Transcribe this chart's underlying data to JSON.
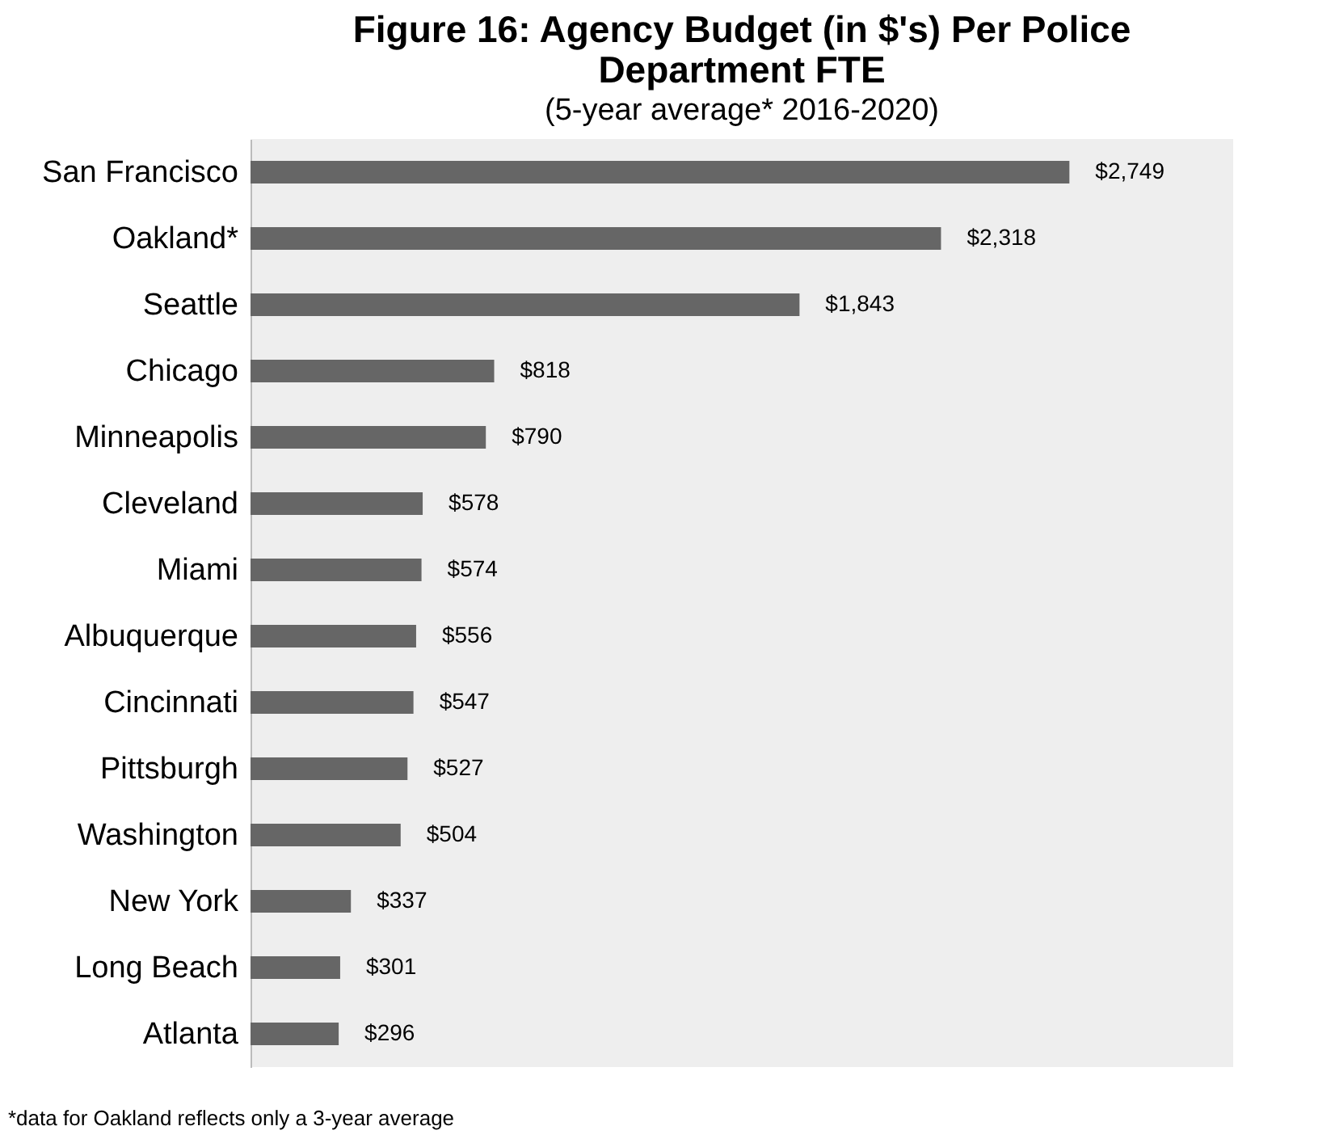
{
  "chart_data": {
    "type": "bar",
    "orientation": "horizontal",
    "title": "Figure 16: Agency Budget (in $'s) Per Police Department FTE",
    "subtitle": "(5-year average* 2016-2020)",
    "categories": [
      "San Francisco",
      "Oakland*",
      "Seattle",
      "Chicago",
      "Minneapolis",
      "Cleveland",
      "Miami",
      "Albuquerque",
      "Cincinnati",
      "Pittsburgh",
      "Washington",
      "New York",
      "Long Beach",
      "Atlanta"
    ],
    "values": [
      2749,
      2318,
      1843,
      818,
      790,
      578,
      574,
      556,
      547,
      527,
      504,
      337,
      301,
      296
    ],
    "value_labels": [
      "$2,749",
      "$2,318",
      "$1,843",
      "$818",
      "$790",
      "$578",
      "$574",
      "$556",
      "$547",
      "$527",
      "$504",
      "$337",
      "$301",
      "$296"
    ],
    "color": "#666666",
    "grid": false,
    "annotations": [
      "*data for Oakland reflects only a 3-year average"
    ]
  }
}
